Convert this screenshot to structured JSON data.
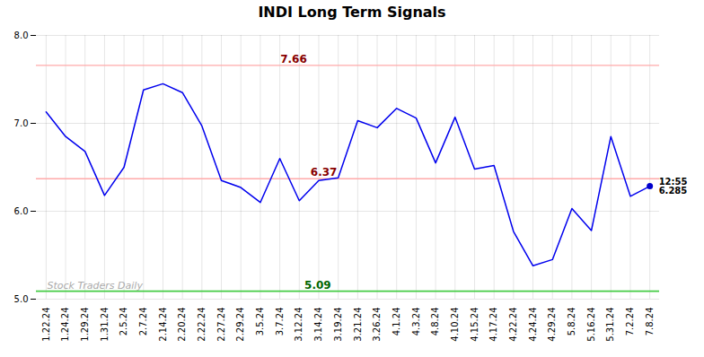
{
  "chart_data": {
    "type": "line",
    "title": "INDI Long Term Signals",
    "categories": [
      "1.22.24",
      "1.24.24",
      "1.29.24",
      "1.31.24",
      "2.5.24",
      "2.7.24",
      "2.14.24",
      "2.20.24",
      "2.22.24",
      "2.27.24",
      "2.29.24",
      "3.5.24",
      "3.7.24",
      "3.12.24",
      "3.14.24",
      "3.19.24",
      "3.21.24",
      "3.26.24",
      "4.1.24",
      "4.3.24",
      "4.8.24",
      "4.10.24",
      "4.15.24",
      "4.17.24",
      "4.22.24",
      "4.24.24",
      "4.29.24",
      "5.8.24",
      "5.16.24",
      "5.31.24",
      "7.2.24",
      "7.8.24"
    ],
    "values": [
      7.13,
      6.85,
      6.68,
      6.18,
      6.5,
      7.38,
      7.45,
      7.35,
      6.97,
      6.35,
      6.27,
      6.1,
      6.6,
      6.12,
      6.35,
      6.38,
      7.03,
      6.95,
      7.17,
      7.06,
      6.55,
      7.07,
      6.48,
      6.52,
      5.77,
      5.38,
      5.45,
      6.03,
      5.78,
      6.85,
      6.17,
      6.285
    ],
    "color": "#0000ee",
    "ylim": [
      5.0,
      8.0
    ],
    "yticks": [
      5,
      6,
      7,
      8
    ],
    "grid": true,
    "reference_lines": [
      {
        "y": 7.66,
        "color": "#ffaaaa",
        "label": "7.66",
        "label_color": "#880000"
      },
      {
        "y": 6.37,
        "color": "#ffaaaa",
        "label": "6.37",
        "label_color": "#880000"
      },
      {
        "y": 5.09,
        "color": "#44cc44",
        "label": "5.09",
        "label_color": "#006600"
      }
    ],
    "last_point": {
      "color": "#0000cc",
      "time": "12:55",
      "value": "6.285"
    },
    "watermark": {
      "text": "Stock Traders Daily",
      "color": "#aaaaaa"
    }
  }
}
